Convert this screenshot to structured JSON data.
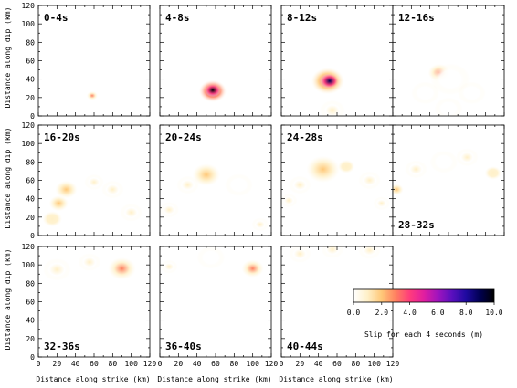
{
  "chart_data": {
    "type": "heatmap",
    "xlabel": "Distance along strike (km)",
    "ylabel": "Distance along dip (km)",
    "xlim": [
      0,
      120
    ],
    "ylim": [
      0,
      120
    ],
    "xticks": [
      0,
      10,
      20,
      30,
      40,
      50,
      60,
      70,
      80,
      90,
      100,
      110,
      120
    ],
    "xticklabels": [
      "0",
      "20",
      "40",
      "60",
      "80",
      "100",
      "120"
    ],
    "yticklabels": [
      "0",
      "20",
      "40",
      "60",
      "80",
      "100",
      "120"
    ],
    "colorbar": {
      "label": "Slip for each 4 seconds (m)",
      "min": 0,
      "max": 10,
      "ticklabels": [
        "0.0",
        "2.0",
        "4.0",
        "6.0",
        "8.0",
        "10.0"
      ],
      "colors": [
        "#ffffff",
        "#fff0c8",
        "#ffc878",
        "#ff8060",
        "#ff3c7c",
        "#e11ea0",
        "#a014be",
        "#5a0fbe",
        "#1e0aa0",
        "#000050",
        "#000000"
      ]
    },
    "panels": [
      {
        "label": "0-4s",
        "label_pos": "top",
        "blobs": [
          {
            "x": 58,
            "y": 22,
            "r": 4,
            "slip": 3.0
          }
        ]
      },
      {
        "label": "4-8s",
        "label_pos": "top",
        "blobs": [
          {
            "x": 57,
            "y": 27,
            "r": 10,
            "slip": 6.0
          },
          {
            "x": 57,
            "y": 28,
            "r": 6,
            "slip": 9.5
          }
        ]
      },
      {
        "label": "8-12s",
        "label_pos": "top",
        "blobs": [
          {
            "x": 50,
            "y": 38,
            "r": 12,
            "slip": 5.0
          },
          {
            "x": 52,
            "y": 38,
            "r": 7,
            "slip": 9.0
          },
          {
            "x": 55,
            "y": 6,
            "r": 9,
            "slip": 1.0
          }
        ]
      },
      {
        "label": "12-16s",
        "label_pos": "top",
        "blobs": [
          {
            "x": 50,
            "y": 47,
            "r": 8,
            "slip": 2.5
          },
          {
            "x": 62,
            "y": 40,
            "r": 14,
            "slip": 0.4
          },
          {
            "x": 35,
            "y": 25,
            "r": 10,
            "slip": 0.4
          },
          {
            "x": 85,
            "y": 25,
            "r": 10,
            "slip": 0.4
          },
          {
            "x": 60,
            "y": 8,
            "r": 10,
            "slip": 0.3
          }
        ]
      },
      {
        "label": "16-20s",
        "label_pos": "top",
        "blobs": [
          {
            "x": 30,
            "y": 50,
            "r": 8,
            "slip": 2.2
          },
          {
            "x": 22,
            "y": 35,
            "r": 7,
            "slip": 1.5
          },
          {
            "x": 15,
            "y": 18,
            "r": 7,
            "slip": 1.2
          },
          {
            "x": 60,
            "y": 58,
            "r": 7,
            "slip": 1.0
          },
          {
            "x": 80,
            "y": 50,
            "r": 8,
            "slip": 0.8
          },
          {
            "x": 100,
            "y": 25,
            "r": 8,
            "slip": 0.5
          }
        ]
      },
      {
        "label": "20-24s",
        "label_pos": "top",
        "blobs": [
          {
            "x": 50,
            "y": 66,
            "r": 10,
            "slip": 2.0
          },
          {
            "x": 30,
            "y": 55,
            "r": 8,
            "slip": 0.8
          },
          {
            "x": 10,
            "y": 28,
            "r": 7,
            "slip": 1.0
          },
          {
            "x": 85,
            "y": 55,
            "r": 10,
            "slip": 0.4
          },
          {
            "x": 108,
            "y": 12,
            "r": 6,
            "slip": 1.0
          }
        ]
      },
      {
        "label": "24-28s",
        "label_pos": "top",
        "blobs": [
          {
            "x": 45,
            "y": 72,
            "r": 12,
            "slip": 2.0
          },
          {
            "x": 20,
            "y": 55,
            "r": 8,
            "slip": 1.0
          },
          {
            "x": 8,
            "y": 38,
            "r": 6,
            "slip": 0.8
          },
          {
            "x": 70,
            "y": 75,
            "r": 6,
            "slip": 1.2
          },
          {
            "x": 95,
            "y": 60,
            "r": 8,
            "slip": 0.8
          },
          {
            "x": 108,
            "y": 35,
            "r": 6,
            "slip": 0.6
          }
        ]
      },
      {
        "label": "28-32s",
        "label_pos": "bottom",
        "blobs": [
          {
            "x": 4,
            "y": 50,
            "r": 5,
            "slip": 1.5
          },
          {
            "x": 25,
            "y": 72,
            "r": 8,
            "slip": 0.5
          },
          {
            "x": 80,
            "y": 85,
            "r": 8,
            "slip": 0.6
          },
          {
            "x": 108,
            "y": 68,
            "r": 6,
            "slip": 1.4
          },
          {
            "x": 55,
            "y": 80,
            "r": 10,
            "slip": 0.4
          }
        ]
      },
      {
        "label": "32-36s",
        "label_pos": "bottom",
        "blobs": [
          {
            "x": 90,
            "y": 96,
            "r": 10,
            "slip": 2.5
          },
          {
            "x": 55,
            "y": 103,
            "r": 8,
            "slip": 0.8
          },
          {
            "x": 20,
            "y": 95,
            "r": 10,
            "slip": 0.6
          }
        ]
      },
      {
        "label": "36-40s",
        "label_pos": "bottom",
        "blobs": [
          {
            "x": 100,
            "y": 96,
            "r": 8,
            "slip": 3.0
          },
          {
            "x": 10,
            "y": 98,
            "r": 6,
            "slip": 0.8
          },
          {
            "x": 55,
            "y": 108,
            "r": 10,
            "slip": 0.4
          }
        ]
      },
      {
        "label": "40-44s",
        "label_pos": "bottom",
        "blobs": [
          {
            "x": 55,
            "y": 117,
            "r": 8,
            "slip": 1.0
          },
          {
            "x": 95,
            "y": 116,
            "r": 8,
            "slip": 0.6
          },
          {
            "x": 20,
            "y": 112,
            "r": 8,
            "slip": 0.5
          }
        ]
      }
    ]
  }
}
